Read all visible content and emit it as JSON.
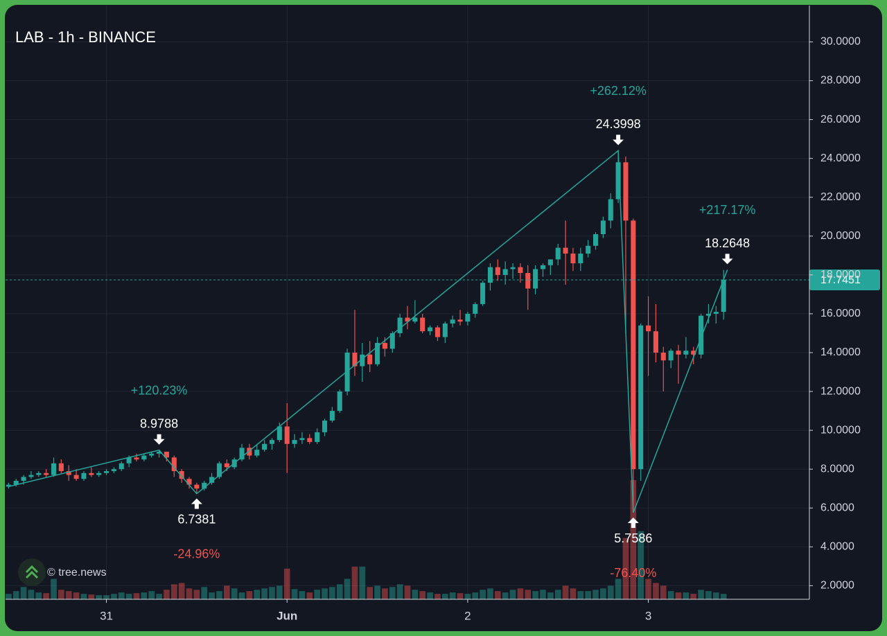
{
  "chart_data": {
    "type": "candlestick",
    "title": "LAB - 1h - BINANCE",
    "watermark": "© tree.news",
    "up_color": "#26a69a",
    "down_color": "#ef5350",
    "grid": true,
    "x": [
      -13,
      -12,
      -11,
      -10,
      -9,
      -8,
      -7,
      -6,
      -5,
      -4,
      -3,
      -2,
      -1,
      0,
      1,
      2,
      3,
      4,
      5,
      6,
      7,
      8,
      9,
      10,
      11,
      12,
      13,
      14,
      15,
      16,
      17,
      18,
      19,
      20,
      21,
      22,
      23,
      24,
      25,
      26,
      27,
      28,
      29,
      30,
      31,
      32,
      33,
      34,
      35,
      36,
      37,
      38,
      39,
      40,
      41,
      42,
      43,
      44,
      45,
      46,
      47,
      48,
      49,
      50,
      51,
      52,
      53,
      54,
      55,
      56,
      57,
      58,
      59,
      60,
      61,
      62,
      63,
      64,
      65,
      66,
      67,
      68,
      69,
      70,
      71,
      72,
      73,
      74,
      75,
      76,
      77,
      78,
      79,
      80,
      81,
      82
    ],
    "open": [
      7.1,
      7.2,
      7.4,
      7.6,
      7.7,
      7.8,
      7.7,
      8.3,
      7.9,
      7.7,
      7.5,
      7.8,
      7.7,
      7.8,
      7.9,
      8.0,
      8.3,
      8.6,
      8.5,
      8.7,
      8.8,
      8.9,
      8.6,
      7.9,
      7.5,
      7.2,
      7.0,
      7.3,
      7.6,
      8.3,
      8.1,
      8.5,
      9.1,
      8.7,
      9.0,
      9.3,
      9.5,
      10.2,
      9.3,
      9.5,
      9.6,
      9.4,
      9.9,
      10.5,
      11.0,
      12.0,
      14.0,
      13.3,
      13.9,
      13.4,
      14.5,
      14.2,
      15.0,
      15.8,
      15.6,
      15.8,
      15.1,
      15.3,
      14.8,
      15.5,
      15.7,
      15.6,
      16.0,
      16.5,
      17.6,
      18.4,
      18.0,
      18.3,
      18.4,
      18.1,
      17.3,
      18.3,
      18.5,
      18.8,
      19.4,
      19.1,
      18.6,
      19.1,
      19.5,
      20.1,
      20.8,
      21.9,
      23.8,
      20.8,
      8.0,
      15.4,
      15.1,
      14.0,
      13.6,
      14.1,
      13.9,
      14.1,
      13.9,
      15.9,
      16.0,
      16.1
    ],
    "high": [
      7.3,
      7.5,
      7.7,
      7.9,
      7.9,
      8.0,
      8.6,
      8.5,
      8.2,
      8.0,
      7.9,
      8.1,
      7.9,
      8.0,
      8.1,
      8.4,
      8.7,
      8.8,
      8.8,
      8.9,
      8.98,
      8.9,
      8.7,
      8.0,
      7.6,
      7.3,
      7.4,
      7.8,
      8.4,
      8.5,
      8.6,
      9.3,
      9.3,
      9.3,
      9.5,
      9.6,
      10.4,
      11.4,
      9.8,
      9.9,
      9.8,
      10.1,
      10.6,
      11.2,
      12.1,
      14.2,
      16.2,
      14.5,
      14.6,
      14.8,
      14.8,
      15.1,
      16.0,
      16.4,
      16.7,
      16.0,
      15.4,
      15.4,
      15.6,
      15.9,
      16.2,
      16.1,
      16.6,
      17.7,
      18.6,
      18.8,
      18.7,
      18.6,
      18.6,
      18.5,
      18.5,
      18.6,
      18.8,
      19.6,
      20.8,
      19.4,
      19.4,
      19.8,
      20.2,
      21.0,
      22.2,
      24.4,
      24.1,
      20.9,
      15.5,
      16.9,
      16.5,
      14.3,
      14.2,
      14.4,
      14.8,
      14.3,
      16.0,
      16.5,
      16.4,
      18.26
    ],
    "low": [
      7.0,
      7.1,
      7.2,
      7.5,
      7.6,
      7.6,
      7.6,
      7.8,
      7.4,
      7.4,
      7.4,
      7.6,
      7.6,
      7.7,
      7.8,
      7.9,
      8.1,
      8.4,
      8.4,
      8.6,
      8.6,
      8.4,
      7.6,
      7.3,
      7.0,
      6.74,
      6.9,
      7.2,
      7.5,
      7.9,
      8.0,
      8.4,
      8.5,
      8.6,
      8.9,
      9.0,
      9.4,
      7.8,
      9.1,
      9.3,
      9.3,
      9.3,
      9.7,
      10.4,
      10.9,
      11.8,
      12.8,
      12.5,
      13.0,
      13.3,
      13.8,
      14.0,
      14.8,
      15.2,
      15.5,
      15.0,
      14.9,
      14.6,
      14.5,
      15.3,
      15.4,
      15.4,
      15.8,
      16.4,
      17.2,
      17.7,
      17.5,
      17.8,
      17.6,
      16.2,
      17.0,
      17.9,
      18.0,
      18.5,
      17.5,
      18.2,
      18.2,
      18.9,
      19.3,
      19.9,
      20.4,
      21.7,
      15.0,
      5.76,
      7.4,
      12.8,
      13.5,
      12.0,
      13.2,
      12.4,
      13.7,
      13.4,
      13.7,
      15.5,
      15.5,
      15.7
    ],
    "close": [
      7.2,
      7.4,
      7.6,
      7.7,
      7.8,
      7.7,
      8.3,
      7.9,
      7.7,
      7.5,
      7.8,
      7.7,
      7.8,
      7.9,
      8.0,
      8.3,
      8.6,
      8.5,
      8.7,
      8.8,
      8.9,
      8.6,
      7.9,
      7.5,
      7.2,
      7.0,
      7.3,
      7.6,
      8.3,
      8.1,
      8.5,
      9.1,
      8.7,
      9.0,
      9.3,
      9.5,
      10.2,
      9.3,
      9.5,
      9.6,
      9.4,
      9.9,
      10.5,
      11.0,
      12.0,
      14.0,
      13.3,
      13.9,
      13.4,
      14.5,
      14.2,
      15.0,
      15.8,
      15.6,
      15.8,
      15.1,
      15.3,
      14.8,
      15.5,
      15.7,
      15.6,
      16.0,
      16.5,
      17.6,
      18.4,
      18.0,
      18.3,
      18.4,
      18.1,
      17.3,
      18.3,
      18.5,
      18.8,
      19.4,
      19.1,
      18.6,
      19.1,
      19.5,
      20.1,
      20.8,
      21.9,
      23.8,
      20.8,
      8.0,
      15.4,
      15.1,
      14.0,
      13.6,
      14.1,
      13.9,
      14.1,
      13.9,
      15.9,
      16.0,
      16.1,
      17.75
    ],
    "volume": [
      8,
      12,
      18,
      14,
      10,
      9,
      30,
      14,
      12,
      10,
      8,
      7,
      6,
      6,
      8,
      10,
      8,
      9,
      10,
      12,
      8,
      14,
      22,
      24,
      16,
      14,
      18,
      10,
      12,
      20,
      16,
      10,
      12,
      14,
      16,
      18,
      20,
      45,
      15,
      12,
      10,
      14,
      16,
      18,
      22,
      30,
      48,
      48,
      18,
      20,
      16,
      18,
      22,
      20,
      14,
      12,
      10,
      8,
      8,
      10,
      9,
      8,
      10,
      14,
      16,
      12,
      10,
      14,
      16,
      14,
      12,
      14,
      10,
      14,
      20,
      16,
      12,
      12,
      14,
      16,
      20,
      30,
      90,
      175,
      100,
      30,
      24,
      20,
      12,
      10,
      10,
      8,
      14,
      12,
      10,
      8
    ],
    "xlim": [
      -13.4,
      93.4
    ],
    "xticks": [
      {
        "value": 0,
        "label": "31"
      },
      {
        "value": 24,
        "label": "Jun"
      },
      {
        "value": 48,
        "label": "2"
      },
      {
        "value": 72,
        "label": "3"
      }
    ],
    "ylim": [
      1.3,
      31.8
    ],
    "yticks": [
      {
        "value": 2,
        "label": "2.0000"
      },
      {
        "value": 4,
        "label": "4.0000"
      },
      {
        "value": 6,
        "label": "6.0000"
      },
      {
        "value": 8,
        "label": "8.0000"
      },
      {
        "value": 10,
        "label": "10.0000"
      },
      {
        "value": 12,
        "label": "12.0000"
      },
      {
        "value": 14,
        "label": "14.0000"
      },
      {
        "value": 16,
        "label": "16.0000"
      },
      {
        "value": 18,
        "label": "18.0000"
      },
      {
        "value": 20,
        "label": "20.0000"
      },
      {
        "value": 22,
        "label": "22.0000"
      },
      {
        "value": 24,
        "label": "24.0000"
      },
      {
        "value": 26,
        "label": "26.0000"
      },
      {
        "value": 28,
        "label": "28.0000"
      },
      {
        "value": 30,
        "label": "30.0000"
      }
    ],
    "last_price": {
      "value": 17.7451,
      "label": "17.7451"
    },
    "zigzag": {
      "color": "#26a69a",
      "points": [
        {
          "x": -13,
          "value": 7.1
        },
        {
          "x": 7,
          "value": 8.9788,
          "change": "+120.23%"
        },
        {
          "x": 12,
          "value": 6.7381,
          "change": "-24.96%"
        },
        {
          "x": 68,
          "value": 24.3998,
          "change": "+262.12%"
        },
        {
          "x": 70,
          "value": 5.7586,
          "change": "-76.40%"
        },
        {
          "x": 82.5,
          "value": 18.2648,
          "change": "+217.17%"
        }
      ]
    }
  }
}
